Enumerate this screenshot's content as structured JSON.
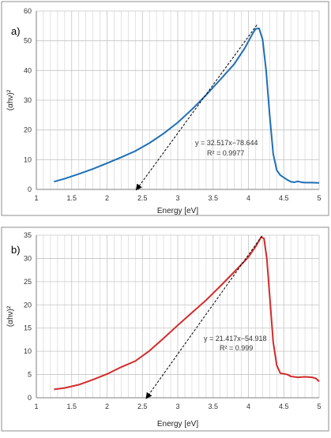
{
  "chart_data": [
    {
      "type": "line",
      "panel_label": "a)",
      "title": "",
      "xlabel": "Energy [eV]",
      "ylabel": "(αhν)²",
      "xlim": [
        1,
        5
      ],
      "ylim": [
        0,
        60
      ],
      "x_ticks": [
        1,
        1.5,
        2,
        2.5,
        3,
        3.5,
        4,
        4.5,
        5
      ],
      "y_ticks": [
        0,
        10,
        20,
        30,
        40,
        50,
        60
      ],
      "grid": "vertical minor gridlines, horizontal major gridlines",
      "series_color": "#1f6fb5",
      "series": [
        {
          "values": [
            [
              1.25,
              2.6
            ],
            [
              1.4,
              3.6
            ],
            [
              1.6,
              5.2
            ],
            [
              1.8,
              6.9
            ],
            [
              2.0,
              8.8
            ],
            [
              2.2,
              10.8
            ],
            [
              2.4,
              12.9
            ],
            [
              2.6,
              15.6
            ],
            [
              2.8,
              18.8
            ],
            [
              3.0,
              22.5
            ],
            [
              3.2,
              26.9
            ],
            [
              3.4,
              31.7
            ],
            [
              3.6,
              36.9
            ],
            [
              3.8,
              42.2
            ],
            [
              3.95,
              47.6
            ],
            [
              4.05,
              52.0
            ],
            [
              4.1,
              54.0
            ],
            [
              4.15,
              54.2
            ],
            [
              4.2,
              50.5
            ],
            [
              4.25,
              40.0
            ],
            [
              4.3,
              25.0
            ],
            [
              4.35,
              12.0
            ],
            [
              4.4,
              6.5
            ],
            [
              4.45,
              4.8
            ],
            [
              4.5,
              4.0
            ],
            [
              4.55,
              3.2
            ],
            [
              4.6,
              2.6
            ],
            [
              4.65,
              2.4
            ],
            [
              4.7,
              2.7
            ],
            [
              4.75,
              2.4
            ],
            [
              4.8,
              2.3
            ],
            [
              4.9,
              2.3
            ],
            [
              5.0,
              2.2
            ]
          ]
        }
      ],
      "fit_line": {
        "x": [
          2.42,
          4.12
        ]
      },
      "annotation": {
        "equation": "y = 32.517x−78.644",
        "r2_label": "R² = 0.9977"
      }
    },
    {
      "type": "line",
      "panel_label": "b)",
      "title": "",
      "xlabel": "Energy [eV]",
      "ylabel": "(αhν)²",
      "xlim": [
        1,
        5
      ],
      "ylim": [
        0,
        35
      ],
      "x_ticks": [
        1,
        1.5,
        2,
        2.5,
        3,
        3.5,
        4,
        4.5,
        5
      ],
      "y_ticks": [
        0,
        5,
        10,
        15,
        20,
        25,
        30,
        35
      ],
      "grid": "vertical minor gridlines, horizontal major gridlines",
      "series_color": "#d22b2b",
      "series": [
        {
          "values": [
            [
              1.25,
              1.8
            ],
            [
              1.4,
              2.1
            ],
            [
              1.6,
              2.8
            ],
            [
              1.8,
              3.9
            ],
            [
              2.0,
              5.1
            ],
            [
              2.2,
              6.6
            ],
            [
              2.4,
              7.9
            ],
            [
              2.6,
              10.1
            ],
            [
              2.8,
              12.8
            ],
            [
              3.0,
              15.6
            ],
            [
              3.2,
              18.3
            ],
            [
              3.4,
              21.0
            ],
            [
              3.6,
              24.0
            ],
            [
              3.8,
              27.1
            ],
            [
              4.0,
              30.3
            ],
            [
              4.1,
              32.5
            ],
            [
              4.18,
              34.6
            ],
            [
              4.22,
              34.3
            ],
            [
              4.26,
              30.0
            ],
            [
              4.3,
              22.0
            ],
            [
              4.35,
              12.0
            ],
            [
              4.4,
              7.0
            ],
            [
              4.45,
              5.3
            ],
            [
              4.55,
              5.0
            ],
            [
              4.6,
              4.6
            ],
            [
              4.7,
              4.4
            ],
            [
              4.8,
              4.5
            ],
            [
              4.9,
              4.4
            ],
            [
              4.95,
              4.2
            ],
            [
              5.0,
              3.5
            ]
          ]
        }
      ],
      "fit_line": {
        "x": [
          2.56,
          4.19
        ]
      },
      "annotation": {
        "equation": "y = 21.417x−54.918",
        "r2_label": "R² = 0.999"
      }
    }
  ]
}
